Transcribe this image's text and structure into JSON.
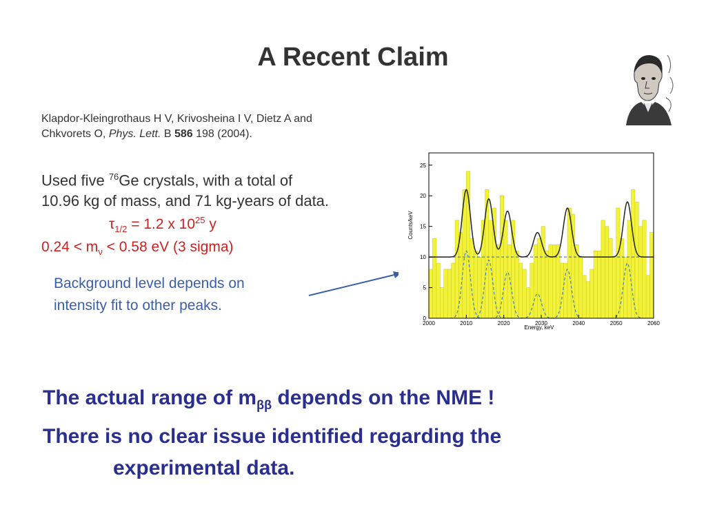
{
  "slide": {
    "title": "A Recent Claim",
    "ref_line1": "Klapdor-Kleingrothaus H V, Krivosheina I V, Dietz A and",
    "ref_line2_a": "Chkvorets O, ",
    "ref_line2_journal": "Phys. Lett.",
    "ref_line2_b": " B ",
    "ref_line2_vol": "586",
    "ref_line2_c": " 198 (2004).",
    "main_line1_a": "Used five ",
    "main_line1_sup": "76",
    "main_line1_b": "Ge crystals, with a total of",
    "main_line2": "10.96 kg of mass, and 71 kg-years of data.",
    "halflife_symbol": "τ",
    "halflife_sub": "1/2",
    "halflife_a": " = 1.2 x 10",
    "halflife_sup": "25",
    "halflife_b": " y",
    "mass_a": "0.24 < m",
    "mass_sub": "ν",
    "mass_b": " < 0.58 eV  (3 sigma)",
    "bg_line1": "Background level depends on",
    "bg_line2": "intensity fit to other peaks.",
    "bottom_line1_a": "The actual range of m",
    "bottom_line1_sub": "ββ",
    "bottom_line1_b": " depends on the NME !",
    "bottom_line2": "There is no clear issue identified regarding the",
    "bottom_line3": "experimental data."
  },
  "colors": {
    "title": "#333333",
    "red": "#d11f1f",
    "blue_note": "#3a5ea8",
    "bottom": "#2a2f8f",
    "bars": "#f2f23a",
    "bar_edge": "#c9c91a",
    "fit": "#222222",
    "dashed": "#4a7fb0"
  },
  "chart_data": {
    "type": "bar",
    "xlabel": "Energy, keV",
    "ylabel": "Counts/keV",
    "xlim": [
      2000,
      2060
    ],
    "ylim": [
      0,
      27
    ],
    "xticks": [
      2000,
      2010,
      2020,
      2030,
      2040,
      2050,
      2060
    ],
    "yticks": [
      0,
      5,
      10,
      15,
      20,
      25
    ],
    "bin_width": 1,
    "bins_start": 2000,
    "values": [
      8,
      13,
      9,
      5,
      8,
      8,
      9,
      16,
      14,
      21,
      24,
      13,
      11,
      10,
      16,
      21,
      16,
      18,
      12,
      20,
      16,
      12,
      16,
      11,
      9,
      8,
      5,
      9,
      12,
      13,
      15,
      11,
      12,
      12,
      12,
      9,
      9,
      18,
      17,
      12,
      10,
      7,
      6,
      8,
      11,
      11,
      16,
      15,
      13,
      10,
      18,
      13,
      10,
      16,
      21,
      19,
      15,
      16,
      7,
      14
    ],
    "background_level": 10,
    "peaks": [
      {
        "center": 2010,
        "height": 11,
        "sigma": 1.1
      },
      {
        "center": 2016,
        "height": 9.5,
        "sigma": 1.1
      },
      {
        "center": 2021,
        "height": 7.5,
        "sigma": 1.1
      },
      {
        "center": 2029,
        "height": 4,
        "sigma": 1.1
      },
      {
        "center": 2037,
        "height": 8,
        "sigma": 1.1
      },
      {
        "center": 2053,
        "height": 9,
        "sigma": 1.1
      }
    ]
  }
}
